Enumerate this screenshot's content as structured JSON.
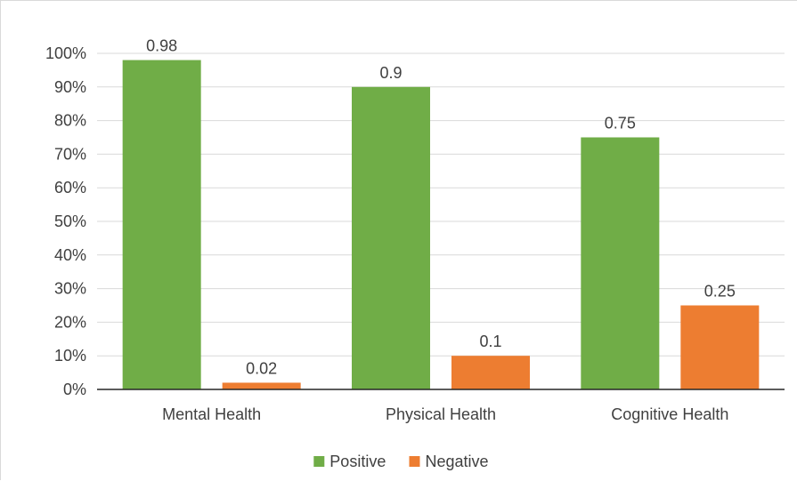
{
  "chart_data": {
    "type": "bar",
    "categories": [
      "Mental Health",
      "Physical Health",
      "Cognitive Health"
    ],
    "series": [
      {
        "name": "Positive",
        "values": [
          0.98,
          0.9,
          0.75
        ],
        "labels": [
          "0.98",
          "0.9",
          "0.75"
        ],
        "color": "#70ad47"
      },
      {
        "name": "Negative",
        "values": [
          0.02,
          0.1,
          0.25
        ],
        "labels": [
          "0.02",
          "0.1",
          "0.25"
        ],
        "color": "#ed7d31"
      }
    ],
    "ylim": [
      0,
      1
    ],
    "yticks": [
      0,
      0.1,
      0.2,
      0.3,
      0.4,
      0.5,
      0.6,
      0.7,
      0.8,
      0.9,
      1.0
    ],
    "ytick_labels": [
      "0%",
      "10%",
      "20%",
      "30%",
      "40%",
      "50%",
      "60%",
      "70%",
      "80%",
      "90%",
      "100%"
    ],
    "grid": true,
    "legend_position": "bottom",
    "title": "",
    "xlabel": "",
    "ylabel": ""
  }
}
